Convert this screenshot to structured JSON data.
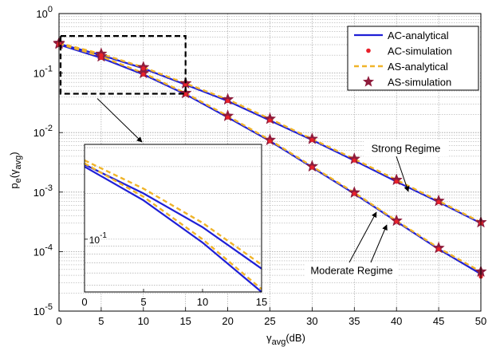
{
  "colors": {
    "ac": "#1f1fd6",
    "as": "#f0b429",
    "ac_marker": "#e8202a",
    "as_marker": "#8f1c3c"
  },
  "chart_data": [
    {
      "type": "line",
      "xlabel": "γavg(dB)",
      "ylabel": "pe(γavg)",
      "xlim": [
        0,
        50
      ],
      "ylim": [
        1e-05,
        1
      ],
      "yscale": "log",
      "xticks": [
        "0",
        "5",
        "10",
        "15",
        "20",
        "25",
        "30",
        "35",
        "40",
        "45",
        "50"
      ],
      "yticks": [
        "10^-5",
        "10^-4",
        "10^-3",
        "10^-2",
        "10^-1",
        "10^0"
      ],
      "grid": true,
      "legend_position": "top-right",
      "x": [
        0,
        5,
        10,
        15,
        20,
        25,
        30,
        35,
        40,
        45,
        50
      ],
      "series": [
        {
          "name": "AC-analytical",
          "group": "Strong Regime",
          "style": "line",
          "values": [
            0.31,
            0.2,
            0.12,
            0.064,
            0.034,
            0.016,
            0.0075,
            0.0034,
            0.0015,
            0.00068,
            0.0003
          ]
        },
        {
          "name": "AC-analytical",
          "group": "Moderate Regime",
          "style": "line",
          "values": [
            0.3,
            0.18,
            0.095,
            0.044,
            0.018,
            0.0072,
            0.0026,
            0.00094,
            0.00032,
            0.00011,
            4.2e-05
          ]
        },
        {
          "name": "AC-simulation",
          "group": "Strong Regime",
          "style": "dot",
          "values": [
            0.31,
            0.2,
            0.12,
            0.064,
            0.034,
            0.016,
            0.0075,
            0.0034,
            0.0015,
            0.00068,
            0.0003
          ]
        },
        {
          "name": "AC-simulation",
          "group": "Moderate Regime",
          "style": "dot",
          "values": [
            0.3,
            0.18,
            0.095,
            0.044,
            0.018,
            0.0072,
            0.0026,
            0.00094,
            0.00032,
            0.00011,
            3.8e-05
          ]
        },
        {
          "name": "AS-analytical",
          "group": "Strong Regime",
          "style": "dash",
          "values": [
            0.32,
            0.21,
            0.125,
            0.067,
            0.036,
            0.017,
            0.0078,
            0.0036,
            0.0016,
            0.00071,
            0.00031
          ]
        },
        {
          "name": "AS-analytical",
          "group": "Moderate Regime",
          "style": "dash",
          "values": [
            0.31,
            0.19,
            0.1,
            0.046,
            0.019,
            0.0075,
            0.0027,
            0.00098,
            0.00033,
            0.000115,
            4.6e-05
          ]
        },
        {
          "name": "AS-simulation",
          "group": "Strong Regime",
          "style": "star",
          "values": [
            0.32,
            0.21,
            0.125,
            0.067,
            0.036,
            0.017,
            0.0078,
            0.0036,
            0.0016,
            0.00071,
            0.00031
          ]
        },
        {
          "name": "AS-simulation",
          "group": "Moderate Regime",
          "style": "star",
          "values": [
            0.31,
            0.19,
            0.1,
            0.046,
            0.019,
            0.0075,
            0.0027,
            0.00098,
            0.00033,
            0.000115,
            4.6e-05
          ]
        }
      ],
      "legend": [
        "AC-analytical",
        "AC-simulation",
        "AS-analytical",
        "AS-simulation"
      ],
      "annotations": [
        "Strong Regime",
        "Moderate Regime"
      ]
    },
    {
      "type": "line",
      "role": "inset",
      "xlim": [
        0,
        15
      ],
      "ylim": [
        0.045,
        0.42
      ],
      "yscale": "log",
      "xticks": [
        "0",
        "5",
        "10",
        "15"
      ],
      "yticks": [
        "10^-1"
      ],
      "x": [
        0,
        5,
        10,
        15
      ],
      "series": [
        {
          "name": "AC-analytical",
          "group": "Strong Regime",
          "values": [
            0.31,
            0.2,
            0.12,
            0.064
          ]
        },
        {
          "name": "AS-analytical",
          "group": "Strong Regime",
          "values": [
            0.33,
            0.215,
            0.128,
            0.068
          ]
        },
        {
          "name": "AC-analytical",
          "group": "Moderate Regime",
          "values": [
            0.3,
            0.18,
            0.095,
            0.045
          ]
        },
        {
          "name": "AS-analytical",
          "group": "Moderate Regime",
          "values": [
            0.315,
            0.19,
            0.1,
            0.047
          ]
        }
      ]
    }
  ]
}
